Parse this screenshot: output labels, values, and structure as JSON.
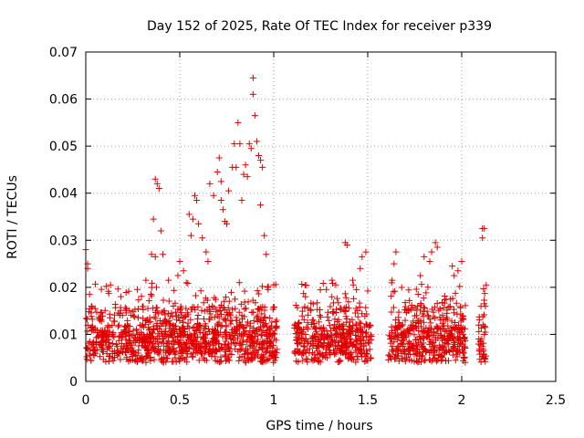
{
  "chart_data": {
    "type": "scatter",
    "title": "Day 152 of 2025, Rate Of TEC Index for receiver p339",
    "xlabel": "GPS time / hours",
    "ylabel": "ROTI / TECUs",
    "xlim": [
      0,
      2.5
    ],
    "ylim": [
      0,
      0.07
    ],
    "xticks": [
      0,
      0.5,
      1,
      1.5,
      2,
      2.5
    ],
    "xtick_labels": [
      "0",
      "0.5",
      "1",
      "1.5",
      "2",
      "2.5"
    ],
    "yticks": [
      0,
      0.01,
      0.02,
      0.03,
      0.04,
      0.05,
      0.06,
      0.07
    ],
    "ytick_labels": [
      "0",
      "0.01",
      "0.02",
      "0.03",
      "0.04",
      "0.05",
      "0.06",
      "0.07"
    ],
    "grid": true,
    "marker": "+",
    "marker_color": "#e00000",
    "segments": [
      [
        0.0,
        1.02
      ],
      [
        1.11,
        1.52
      ],
      [
        1.61,
        2.02
      ],
      [
        2.09,
        2.13
      ]
    ],
    "points": [
      [
        0.0,
        0.028
      ],
      [
        0.01,
        0.025
      ],
      [
        0.01,
        0.024
      ],
      [
        0.02,
        0.0185
      ],
      [
        0.03,
        0.016
      ],
      [
        0.05,
        0.0155
      ],
      [
        0.37,
        0.043
      ],
      [
        0.38,
        0.042
      ],
      [
        0.39,
        0.041
      ],
      [
        0.36,
        0.0345
      ],
      [
        0.4,
        0.032
      ],
      [
        0.41,
        0.027
      ],
      [
        0.37,
        0.0265
      ],
      [
        0.35,
        0.027
      ],
      [
        0.55,
        0.0355
      ],
      [
        0.57,
        0.0345
      ],
      [
        0.58,
        0.0395
      ],
      [
        0.59,
        0.0385
      ],
      [
        0.56,
        0.031
      ],
      [
        0.6,
        0.0335
      ],
      [
        0.62,
        0.0305
      ],
      [
        0.66,
        0.042
      ],
      [
        0.68,
        0.0395
      ],
      [
        0.7,
        0.0445
      ],
      [
        0.71,
        0.0475
      ],
      [
        0.72,
        0.0425
      ],
      [
        0.72,
        0.0385
      ],
      [
        0.73,
        0.0365
      ],
      [
        0.74,
        0.034
      ],
      [
        0.75,
        0.0335
      ],
      [
        0.76,
        0.0405
      ],
      [
        0.78,
        0.0455
      ],
      [
        0.79,
        0.0505
      ],
      [
        0.8,
        0.0455
      ],
      [
        0.81,
        0.055
      ],
      [
        0.82,
        0.0505
      ],
      [
        0.83,
        0.0385
      ],
      [
        0.84,
        0.044
      ],
      [
        0.85,
        0.046
      ],
      [
        0.86,
        0.0435
      ],
      [
        0.87,
        0.0505
      ],
      [
        0.88,
        0.0495
      ],
      [
        0.89,
        0.0645
      ],
      [
        0.89,
        0.061
      ],
      [
        0.9,
        0.0565
      ],
      [
        0.91,
        0.051
      ],
      [
        0.92,
        0.048
      ],
      [
        0.93,
        0.047
      ],
      [
        0.93,
        0.0375
      ],
      [
        0.94,
        0.0455
      ],
      [
        0.95,
        0.031
      ],
      [
        0.96,
        0.027
      ],
      [
        0.64,
        0.0275
      ],
      [
        0.65,
        0.0255
      ],
      [
        1.38,
        0.0295
      ],
      [
        1.39,
        0.029
      ],
      [
        1.47,
        0.0265
      ],
      [
        1.49,
        0.0275
      ],
      [
        1.46,
        0.024
      ],
      [
        1.65,
        0.0275
      ],
      [
        1.64,
        0.025
      ],
      [
        1.63,
        0.0215
      ],
      [
        1.8,
        0.0265
      ],
      [
        1.83,
        0.0255
      ],
      [
        1.84,
        0.0275
      ],
      [
        1.86,
        0.0295
      ],
      [
        1.87,
        0.0285
      ],
      [
        1.78,
        0.0225
      ],
      [
        1.95,
        0.0245
      ],
      [
        1.96,
        0.0225
      ],
      [
        1.98,
        0.0235
      ],
      [
        2.0,
        0.0255
      ],
      [
        2.11,
        0.0325
      ],
      [
        2.12,
        0.0325
      ],
      [
        2.11,
        0.0305
      ],
      [
        2.13,
        0.0205
      ],
      [
        2.12,
        0.0165
      ],
      [
        0.49,
        0.0225
      ],
      [
        0.5,
        0.0255
      ],
      [
        0.52,
        0.0235
      ],
      [
        0.32,
        0.0215
      ],
      [
        0.44,
        0.0215
      ],
      [
        1.0,
        0.0205
      ],
      [
        0.97,
        0.0195
      ],
      [
        1.31,
        0.0215
      ],
      [
        1.33,
        0.0205
      ],
      [
        1.42,
        0.0215
      ],
      [
        1.44,
        0.0195
      ]
    ]
  }
}
